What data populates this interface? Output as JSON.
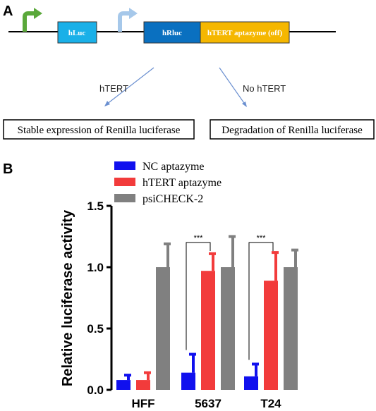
{
  "panel_a": {
    "letter": "A",
    "genes": [
      {
        "label": "hLuc",
        "color": "#1ab0e8"
      },
      {
        "label": "hRluc",
        "color": "#0a70c0"
      },
      {
        "label": "hTERT aptazyme (off)",
        "color": "#f5b700"
      }
    ],
    "promoter_colors": {
      "first": "#5aa83a",
      "second": "#a6c8ea"
    },
    "branches": [
      {
        "condition": "hTERT",
        "outcome": "Stable expression of Renilla luciferase"
      },
      {
        "condition": "No hTERT",
        "outcome": "Degradation of Renilla luciferase"
      }
    ]
  },
  "panel_b": {
    "letter": "B",
    "chart_data": {
      "type": "bar",
      "title": "",
      "xlabel": "",
      "ylabel": "Relative luciferase activity",
      "ylim": [
        0,
        1.5
      ],
      "yticks": [
        "0.0",
        "0.5",
        "1.0",
        "1.5"
      ],
      "categories": [
        "HFF",
        "5637",
        "T24"
      ],
      "series": [
        {
          "name": "NC aptazyme",
          "color": "#1010ee",
          "values": [
            0.08,
            0.14,
            0.11
          ],
          "errors": [
            0.04,
            0.15,
            0.1
          ]
        },
        {
          "name": "hTERT aptazyme",
          "color": "#f23b3b",
          "values": [
            0.08,
            0.97,
            0.89
          ],
          "errors": [
            0.06,
            0.14,
            0.23
          ]
        },
        {
          "name": "psiCHECK-2",
          "color": "#808080",
          "values": [
            1.0,
            1.0,
            1.0
          ],
          "errors": [
            0.19,
            0.25,
            0.14
          ]
        }
      ],
      "significance": [
        {
          "category": "5637",
          "label": "***"
        },
        {
          "category": "T24",
          "label": "***"
        }
      ],
      "legend_position": "top"
    }
  }
}
